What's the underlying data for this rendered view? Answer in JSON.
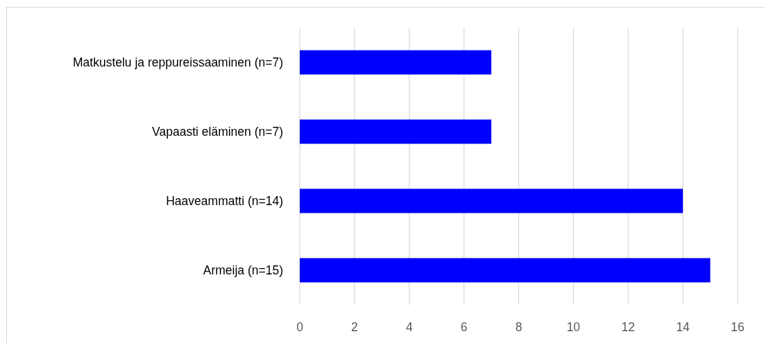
{
  "chart_data": {
    "type": "bar",
    "orientation": "horizontal",
    "categories": [
      "Matkustelu ja reppureissaaminen (n=7)",
      "Vapaasti eläminen (n=7)",
      "Haaveammatti (n=14)",
      "Armeija (n=15)"
    ],
    "values": [
      7,
      7,
      14,
      15
    ],
    "color": "#0000ff",
    "xlim": [
      0,
      16
    ],
    "xticks": [
      0,
      2,
      4,
      6,
      8,
      10,
      12,
      14,
      16
    ],
    "grid": "x"
  }
}
